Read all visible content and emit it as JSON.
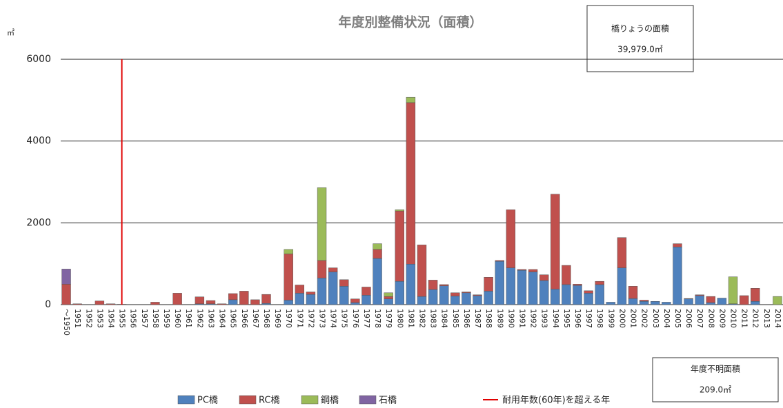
{
  "chart_data": {
    "type": "stacked_bar",
    "title": "年度別整備状況（面積）",
    "y_unit": "㎡",
    "categories": [
      "～1950",
      "1951",
      "1952",
      "1953",
      "1954",
      "1955",
      "1956",
      "1957",
      "1958",
      "1959",
      "1960",
      "1961",
      "1962",
      "1963",
      "1964",
      "1965",
      "1966",
      "1967",
      "1968",
      "1969",
      "1970",
      "1971",
      "1972",
      "1973",
      "1974",
      "1975",
      "1976",
      "1977",
      "1978",
      "1979",
      "1980",
      "1981",
      "1982",
      "1983",
      "1984",
      "1985",
      "1986",
      "1987",
      "1988",
      "1989",
      "1990",
      "1991",
      "1992",
      "1993",
      "1994",
      "1995",
      "1996",
      "1997",
      "1998",
      "1999",
      "2000",
      "2001",
      "2002",
      "2003",
      "2004",
      "2005",
      "2006",
      "2007",
      "2008",
      "2009",
      "2010",
      "2011",
      "2012",
      "2013",
      "2014"
    ],
    "series": [
      {
        "name": "PC橋",
        "color": "#4f81bd",
        "values": [
          0,
          0,
          0,
          0,
          0,
          0,
          0,
          0,
          0,
          0,
          0,
          0,
          20,
          20,
          0,
          120,
          0,
          0,
          30,
          0,
          110,
          280,
          250,
          650,
          800,
          450,
          50,
          230,
          1130,
          140,
          570,
          990,
          200,
          370,
          460,
          210,
          290,
          220,
          330,
          1060,
          900,
          840,
          800,
          590,
          380,
          490,
          470,
          280,
          490,
          60,
          900,
          150,
          80,
          80,
          60,
          1410,
          140,
          220,
          50,
          160,
          20,
          0,
          80,
          0,
          0
        ]
      },
      {
        "name": "RC橋",
        "color": "#c0504d",
        "values": [
          500,
          20,
          0,
          90,
          20,
          10,
          0,
          0,
          60,
          0,
          280,
          0,
          170,
          80,
          20,
          150,
          330,
          120,
          220,
          0,
          1130,
          200,
          60,
          430,
          100,
          160,
          90,
          200,
          220,
          60,
          1720,
          3950,
          1260,
          230,
          30,
          80,
          20,
          20,
          340,
          20,
          1420,
          20,
          60,
          140,
          2320,
          470,
          30,
          60,
          80,
          0,
          740,
          300,
          30,
          0,
          0,
          80,
          10,
          20,
          150,
          0,
          0,
          220,
          320,
          0,
          0
        ]
      },
      {
        "name": "鋼橋",
        "color": "#9bbb59",
        "values": [
          0,
          0,
          0,
          0,
          0,
          0,
          0,
          0,
          0,
          0,
          0,
          0,
          0,
          0,
          0,
          0,
          0,
          0,
          0,
          0,
          110,
          0,
          0,
          1780,
          0,
          0,
          0,
          0,
          140,
          90,
          30,
          130,
          0,
          0,
          0,
          0,
          0,
          0,
          0,
          0,
          0,
          0,
          0,
          0,
          0,
          0,
          0,
          0,
          0,
          0,
          0,
          0,
          0,
          0,
          0,
          0,
          0,
          0,
          0,
          0,
          660,
          0,
          0,
          0,
          200
        ]
      },
      {
        "name": "石橋",
        "color": "#8064a2",
        "values": [
          370,
          0,
          0,
          0,
          0,
          0,
          0,
          0,
          0,
          0,
          0,
          0,
          0,
          0,
          0,
          0,
          0,
          0,
          0,
          0,
          0,
          0,
          0,
          0,
          0,
          0,
          0,
          0,
          0,
          0,
          0,
          0,
          0,
          0,
          0,
          0,
          0,
          0,
          0,
          0,
          0,
          0,
          0,
          0,
          0,
          0,
          0,
          0,
          0,
          0,
          0,
          0,
          0,
          0,
          0,
          0,
          0,
          0,
          0,
          0,
          0,
          0,
          0,
          0,
          0
        ]
      }
    ],
    "marker": {
      "label": "耐用年数(60年)を超える年",
      "category": "1955",
      "color": "#e00000"
    },
    "ylim": [
      0,
      6000
    ],
    "yticks": [
      0,
      2000,
      4000,
      6000
    ],
    "grid": true,
    "info_boxes": [
      {
        "title": "橋りょうの面積",
        "value": "39,979.0㎡"
      },
      {
        "title": "年度不明面積",
        "value": "209.0㎡"
      }
    ]
  }
}
